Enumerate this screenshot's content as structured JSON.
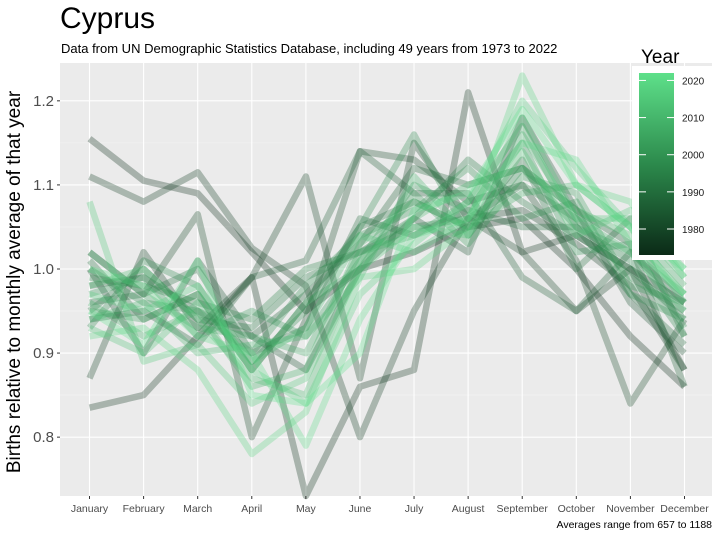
{
  "title": "Cyprus",
  "subtitle": "Data from UN Demographic Statistics Database, including 49 years from 1973 to 2022",
  "caption": "Averages range from 657 to 1188",
  "legend_title": "Year",
  "chart_data": {
    "type": "line",
    "categories": [
      "January",
      "February",
      "March",
      "April",
      "May",
      "June",
      "July",
      "August",
      "September",
      "October",
      "November",
      "December"
    ],
    "ylabel": "Births relative to monthly average of that year",
    "ylim": [
      0.73,
      1.245
    ],
    "yticks": [
      0.8,
      0.9,
      1.0,
      1.1,
      1.2
    ],
    "ytick_labels": [
      "0.8",
      "0.9",
      "1.0",
      "1.1",
      "1.2"
    ],
    "grid": true,
    "legend_position": "top-right",
    "colorbar": {
      "min_year": 1973,
      "max_year": 2022,
      "ticks": [
        1980,
        1990,
        2000,
        2010,
        2020
      ],
      "low_color": "#0b2a17",
      "high_color": "#5ee08a"
    },
    "series": [
      {
        "year": 1973,
        "values": [
          1.155,
          1.105,
          1.09,
          1.02,
          0.95,
          1.0,
          1.02,
          1.05,
          1.06,
          1.0,
          0.92,
          0.86
        ]
      },
      {
        "year": 1975,
        "values": [
          0.835,
          0.85,
          0.92,
          0.99,
          0.73,
          0.86,
          0.88,
          1.21,
          1.02,
          1.04,
          1.0,
          0.96
        ]
      },
      {
        "year": 1977,
        "values": [
          1.11,
          1.08,
          1.115,
          1.025,
          0.98,
          0.8,
          0.95,
          1.06,
          1.07,
          1.03,
          0.98,
          0.88
        ]
      },
      {
        "year": 1979,
        "values": [
          0.87,
          1.02,
          0.93,
          0.99,
          1.11,
          0.87,
          1.15,
          1.06,
          1.02,
          0.95,
          1.0,
          0.88
        ]
      },
      {
        "year": 1981,
        "values": [
          1.02,
          0.97,
          1.065,
          0.8,
          0.94,
          1.14,
          1.13,
          1.08,
          1.1,
          1.01,
          0.84,
          0.94
        ]
      },
      {
        "year": 1983,
        "values": [
          1.0,
          0.9,
          1.01,
          0.92,
          0.88,
          1.0,
          1.06,
          1.02,
          1.18,
          1.07,
          0.96,
          0.9
        ]
      },
      {
        "year": 1985,
        "values": [
          0.94,
          0.95,
          0.91,
          0.99,
          1.01,
          1.14,
          1.09,
          1.09,
          0.99,
          0.95,
          1.02,
          0.96
        ]
      },
      {
        "year": 1987,
        "values": [
          0.98,
          0.99,
          0.95,
          0.92,
          0.97,
          1.03,
          1.12,
          1.1,
          1.12,
          1.07,
          1.03,
          0.86
        ]
      },
      {
        "year": 1989,
        "values": [
          0.96,
          0.97,
          1.0,
          0.9,
          0.93,
          1.06,
          1.04,
          1.07,
          1.05,
          1.05,
          0.97,
          0.91
        ]
      },
      {
        "year": 1991,
        "values": [
          1.01,
          0.94,
          0.97,
          0.88,
          0.96,
          1.05,
          1.08,
          1.05,
          1.13,
          1.0,
          1.06,
          0.92
        ]
      },
      {
        "year": 1993,
        "values": [
          0.95,
          1.0,
          0.94,
          0.93,
          0.99,
          1.02,
          1.06,
          1.13,
          1.08,
          1.04,
          1.0,
          0.94
        ]
      },
      {
        "year": 1995,
        "values": [
          0.99,
          0.98,
          0.96,
          0.94,
          1.0,
          1.02,
          1.05,
          1.06,
          1.1,
          1.06,
          0.99,
          0.95
        ]
      },
      {
        "year": 1997,
        "values": [
          0.93,
          1.01,
          0.98,
          0.89,
          0.95,
          1.05,
          1.16,
          1.04,
          1.12,
          1.05,
          1.01,
          0.92
        ]
      },
      {
        "year": 1999,
        "values": [
          1.0,
          0.96,
          0.95,
          0.9,
          0.98,
          1.04,
          1.07,
          1.12,
          1.06,
          1.08,
          0.97,
          0.94
        ]
      },
      {
        "year": 2001,
        "values": [
          0.97,
          0.99,
          0.92,
          0.95,
          0.92,
          1.01,
          1.1,
          1.07,
          1.15,
          1.02,
          1.03,
          0.93
        ]
      },
      {
        "year": 2003,
        "values": [
          0.95,
          0.94,
          0.97,
          0.88,
          0.96,
          1.0,
          1.09,
          1.03,
          1.11,
          1.09,
          0.98,
          0.96
        ]
      },
      {
        "year": 2005,
        "values": [
          1.02,
          0.97,
          0.93,
          0.92,
          0.9,
          1.02,
          1.04,
          1.08,
          1.17,
          1.05,
          1.02,
          0.97
        ]
      },
      {
        "year": 2007,
        "values": [
          0.96,
          0.92,
          0.95,
          0.86,
          0.88,
          1.03,
          1.08,
          1.05,
          1.09,
          1.1,
          1.05,
          0.98
        ]
      },
      {
        "year": 2009,
        "values": [
          0.94,
          0.96,
          0.9,
          0.91,
          0.92,
          0.99,
          1.11,
          1.04,
          1.16,
          1.06,
          1.02,
          0.95
        ]
      },
      {
        "year": 2011,
        "values": [
          0.98,
          1.0,
          0.94,
          0.87,
          0.85,
          1.01,
          1.06,
          1.1,
          1.12,
          1.07,
          1.04,
          0.97
        ]
      },
      {
        "year": 2013,
        "values": [
          0.93,
          0.9,
          0.96,
          0.89,
          0.93,
          1.04,
          1.02,
          1.06,
          1.18,
          1.06,
          1.06,
          0.99
        ]
      },
      {
        "year": 2015,
        "values": [
          1.08,
          0.89,
          0.91,
          0.84,
          0.87,
          1.0,
          1.05,
          1.04,
          1.14,
          1.04,
          1.07,
          1.0
        ]
      },
      {
        "year": 2017,
        "values": [
          0.97,
          0.95,
          0.98,
          0.88,
          0.84,
          0.97,
          1.03,
          1.08,
          1.2,
          1.12,
          1.05,
          0.96
        ]
      },
      {
        "year": 2019,
        "values": [
          0.92,
          0.93,
          0.88,
          0.78,
          0.83,
          0.99,
          1.0,
          1.05,
          1.23,
          1.1,
          1.08,
          0.99
        ]
      },
      {
        "year": 2021,
        "values": [
          1.0,
          0.98,
          0.92,
          0.9,
          0.79,
          0.94,
          1.04,
          1.06,
          1.15,
          1.13,
          1.03,
          0.97
        ]
      },
      {
        "year": 2022,
        "values": [
          0.95,
          0.91,
          1.01,
          0.85,
          0.84,
          0.9,
          1.07,
          1.09,
          1.19,
          1.1,
          1.05,
          1.0
        ]
      }
    ]
  }
}
